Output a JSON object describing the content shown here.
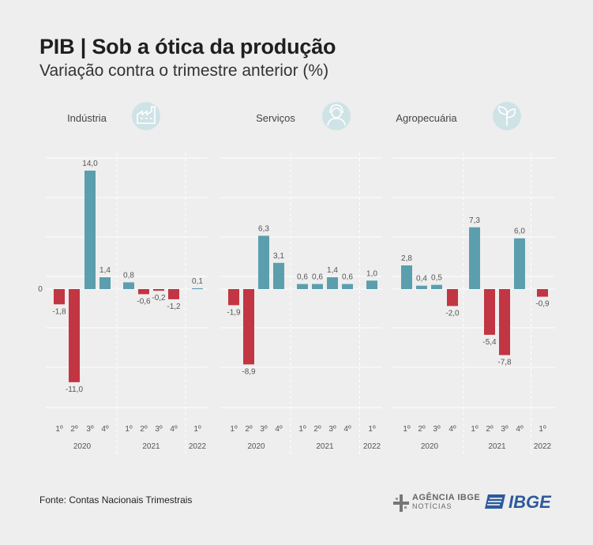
{
  "title": "PIB | Sob a ótica da produção",
  "subtitle": "Variação contra o trimestre anterior (%)",
  "source": "Fonte: Contas Nacionais Trimestrais",
  "logos": {
    "agencia": "AGÊNCIA IBGE",
    "agencia_sub": "NOTÍCIAS",
    "ibge": "IBGE"
  },
  "colors": {
    "positive": "#5b9fae",
    "negative": "#c23542",
    "icon_bg": "#cfe3e7",
    "grid": "#ffffff",
    "text": "#555555"
  },
  "chart_data": [
    {
      "type": "bar",
      "title": "Indústria",
      "icon": "factory-icon",
      "zero_label": "0",
      "categories": [
        "1º",
        "2º",
        "3º",
        "4º",
        "1º",
        "2º",
        "3º",
        "4º",
        "1º"
      ],
      "groups": [
        {
          "label": "2020",
          "size": 4
        },
        {
          "label": "2021",
          "size": 4
        },
        {
          "label": "2022",
          "size": 1
        }
      ],
      "values": [
        -1.8,
        -11.0,
        14.0,
        1.4,
        0.8,
        -0.6,
        -0.2,
        -1.2,
        0.1
      ],
      "labels": [
        "-1,8",
        "-11,0",
        "14,0",
        "1,4",
        "0,8",
        "-0,6",
        "-0,2",
        "-1,2",
        "0,1"
      ],
      "ylim": [
        -14,
        14
      ]
    },
    {
      "type": "bar",
      "title": "Serviços",
      "icon": "person-icon",
      "categories": [
        "1º",
        "2º",
        "3º",
        "4º",
        "1º",
        "2º",
        "3º",
        "4º",
        "1º"
      ],
      "groups": [
        {
          "label": "2020",
          "size": 4
        },
        {
          "label": "2021",
          "size": 4
        },
        {
          "label": "2022",
          "size": 1
        }
      ],
      "values": [
        -1.9,
        -8.9,
        6.3,
        3.1,
        0.6,
        0.6,
        1.4,
        0.6,
        1.0
      ],
      "labels": [
        "-1,9",
        "-8,9",
        "6,3",
        "3,1",
        "0,6",
        "0,6",
        "1,4",
        "0,6",
        "1,0"
      ],
      "ylim": [
        -14,
        14
      ]
    },
    {
      "type": "bar",
      "title": "Agropecuária",
      "icon": "plant-icon",
      "categories": [
        "1º",
        "2º",
        "3º",
        "4º",
        "1º",
        "2º",
        "3º",
        "4º",
        "1º"
      ],
      "groups": [
        {
          "label": "2020",
          "size": 4
        },
        {
          "label": "2021",
          "size": 4
        },
        {
          "label": "2022",
          "size": 1
        }
      ],
      "values": [
        2.8,
        0.4,
        0.5,
        -2.0,
        7.3,
        -5.4,
        -7.8,
        6.0,
        -0.9
      ],
      "labels": [
        "2,8",
        "0,4",
        "0,5",
        "-2,0",
        "7,3",
        "-5,4",
        "-7,8",
        "6,0",
        "-0,9"
      ],
      "ylim": [
        -14,
        14
      ]
    }
  ]
}
